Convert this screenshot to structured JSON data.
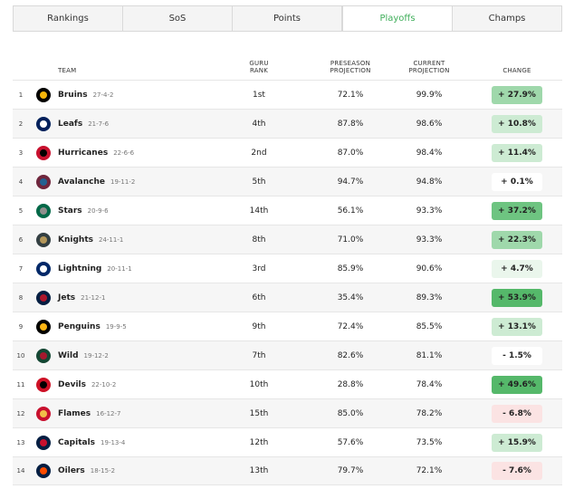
{
  "tabs": [
    {
      "label": "Rankings"
    },
    {
      "label": "SoS"
    },
    {
      "label": "Points"
    },
    {
      "label": "Playoffs"
    },
    {
      "label": "Champs"
    }
  ],
  "active_tab": "Playoffs",
  "headers": {
    "team": "TEAM",
    "guru_rank": "GURU\nRANK",
    "preseason": "PRESEASON\nPROJECTION",
    "current": "CURRENT\nPROJECTION",
    "change": "CHANGE"
  },
  "rows": [
    {
      "num": "1",
      "team": "Bruins",
      "record": "27-4-2",
      "rank": "1st",
      "pre": "72.1%",
      "cur": "99.9%",
      "change": "+ 27.9%",
      "tone": "pos-mid",
      "logo_icon": "bruins-logo-icon",
      "logo_colors": [
        "#000000",
        "#f5b50a"
      ]
    },
    {
      "num": "2",
      "team": "Leafs",
      "record": "21-7-6",
      "rank": "4th",
      "pre": "87.8%",
      "cur": "98.6%",
      "change": "+ 10.8%",
      "tone": "pos-light",
      "logo_icon": "leafs-logo-icon",
      "logo_colors": [
        "#00205b",
        "#ffffff"
      ]
    },
    {
      "num": "3",
      "team": "Hurricanes",
      "record": "22-6-6",
      "rank": "2nd",
      "pre": "87.0%",
      "cur": "98.4%",
      "change": "+ 11.4%",
      "tone": "pos-light",
      "logo_icon": "hurricanes-logo-icon",
      "logo_colors": [
        "#c8102e",
        "#000000"
      ]
    },
    {
      "num": "4",
      "team": "Avalanche",
      "record": "19-11-2",
      "rank": "5th",
      "pre": "94.7%",
      "cur": "94.8%",
      "change": "+ 0.1%",
      "tone": "neutral",
      "logo_icon": "avalanche-logo-icon",
      "logo_colors": [
        "#6f263d",
        "#236192"
      ]
    },
    {
      "num": "5",
      "team": "Stars",
      "record": "20-9-6",
      "rank": "14th",
      "pre": "56.1%",
      "cur": "93.3%",
      "change": "+ 37.2%",
      "tone": "pos-strong",
      "logo_icon": "stars-logo-icon",
      "logo_colors": [
        "#006847",
        "#8f8f8c"
      ]
    },
    {
      "num": "6",
      "team": "Knights",
      "record": "24-11-1",
      "rank": "8th",
      "pre": "71.0%",
      "cur": "93.3%",
      "change": "+ 22.3%",
      "tone": "pos-mid",
      "logo_icon": "knights-logo-icon",
      "logo_colors": [
        "#333f42",
        "#b4975a"
      ]
    },
    {
      "num": "7",
      "team": "Lightning",
      "record": "20-11-1",
      "rank": "3rd",
      "pre": "85.9%",
      "cur": "90.6%",
      "change": "+ 4.7%",
      "tone": "pos-faint",
      "logo_icon": "lightning-logo-icon",
      "logo_colors": [
        "#002868",
        "#ffffff"
      ]
    },
    {
      "num": "8",
      "team": "Jets",
      "record": "21-12-1",
      "rank": "6th",
      "pre": "35.4%",
      "cur": "89.3%",
      "change": "+ 53.9%",
      "tone": "pos-max",
      "logo_icon": "jets-logo-icon",
      "logo_colors": [
        "#041e42",
        "#ac162c"
      ]
    },
    {
      "num": "9",
      "team": "Penguins",
      "record": "19-9-5",
      "rank": "9th",
      "pre": "72.4%",
      "cur": "85.5%",
      "change": "+ 13.1%",
      "tone": "pos-light",
      "logo_icon": "penguins-logo-icon",
      "logo_colors": [
        "#000000",
        "#fcb514"
      ]
    },
    {
      "num": "10",
      "team": "Wild",
      "record": "19-12-2",
      "rank": "7th",
      "pre": "82.6%",
      "cur": "81.1%",
      "change": "- 1.5%",
      "tone": "neutral",
      "logo_icon": "wild-logo-icon",
      "logo_colors": [
        "#154734",
        "#a6192e"
      ]
    },
    {
      "num": "11",
      "team": "Devils",
      "record": "22-10-2",
      "rank": "10th",
      "pre": "28.8%",
      "cur": "78.4%",
      "change": "+ 49.6%",
      "tone": "pos-max",
      "logo_icon": "devils-logo-icon",
      "logo_colors": [
        "#ce1126",
        "#000000"
      ]
    },
    {
      "num": "12",
      "team": "Flames",
      "record": "16-12-7",
      "rank": "15th",
      "pre": "85.0%",
      "cur": "78.2%",
      "change": "- 6.8%",
      "tone": "neg-light",
      "logo_icon": "flames-logo-icon",
      "logo_colors": [
        "#c8102e",
        "#f1be48"
      ]
    },
    {
      "num": "13",
      "team": "Capitals",
      "record": "19-13-4",
      "rank": "12th",
      "pre": "57.6%",
      "cur": "73.5%",
      "change": "+ 15.9%",
      "tone": "pos-light",
      "logo_icon": "capitals-logo-icon",
      "logo_colors": [
        "#041e42",
        "#c8102e"
      ]
    },
    {
      "num": "14",
      "team": "Oilers",
      "record": "18-15-2",
      "rank": "13th",
      "pre": "79.7%",
      "cur": "72.1%",
      "change": "- 7.6%",
      "tone": "neg-light",
      "logo_icon": "oilers-logo-icon",
      "logo_colors": [
        "#041e42",
        "#ff4c00"
      ]
    }
  ],
  "tone_colors": {
    "pos-max": "#55b86a",
    "pos-strong": "#6ec481",
    "pos-mid": "#9fd8ab",
    "pos-light": "#cdebd3",
    "pos-faint": "#eaf6ec",
    "neutral": "#ffffff",
    "neg-light": "#fbe3e3"
  },
  "accent_color": "#3fae5a"
}
